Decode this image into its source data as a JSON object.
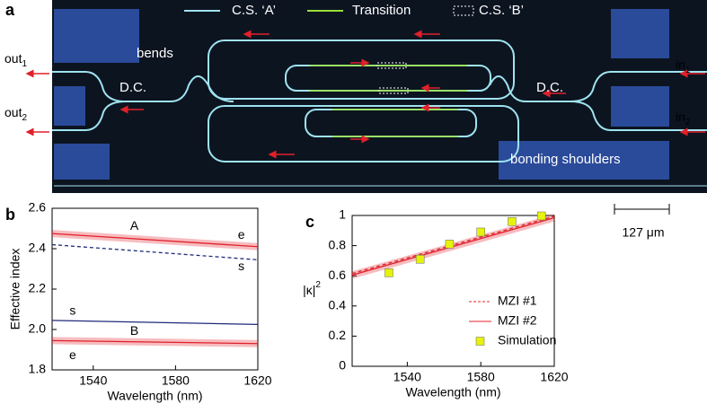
{
  "panel_a": {
    "label": "a",
    "legend": [
      "C.S. ‘A’",
      "Transition",
      "C.S. ‘B’"
    ],
    "outputs": [
      {
        "text": "out",
        "sub": "1"
      },
      {
        "text": "out",
        "sub": "2"
      }
    ],
    "inputs": [
      {
        "text": "in",
        "sub": "1"
      },
      {
        "text": "in",
        "sub": "2"
      }
    ],
    "bends": "bends",
    "couplers": [
      "D.C.",
      "D.C."
    ],
    "shoulders": "bonding shoulders",
    "scale_bar": "127 μm"
  },
  "chart_data": [
    {
      "type": "line",
      "label": "b",
      "xlabel": "Wavelength (nm)",
      "ylabel": "Effective index",
      "xlim": [
        1520,
        1620
      ],
      "xticks": [
        1540,
        1580,
        1620
      ],
      "ylim": [
        1.8,
        2.6
      ],
      "yticks": [
        1.8,
        {
          "value": 2,
          "label": "2.0"
        },
        2.2,
        2.4,
        2.6
      ],
      "x": [
        1520,
        1620
      ],
      "series": [
        {
          "color": "#e0202a",
          "style": "band",
          "values": [
            2.475,
            2.41
          ]
        },
        {
          "color": "#1f2a7a",
          "style": "dashed",
          "values": [
            2.42,
            2.345
          ]
        },
        {
          "color": "#1f2a7a",
          "style": "solid",
          "values": [
            2.045,
            2.025
          ]
        },
        {
          "color": "#e0202a",
          "style": "band",
          "values": [
            1.945,
            1.93
          ]
        }
      ],
      "annotations": [
        "A",
        "e",
        "s",
        "s",
        "B",
        "e"
      ]
    },
    {
      "type": "line",
      "label": "c",
      "xlabel": "Wavelength (nm)",
      "ylabel": "|κ|",
      "ylabel_sup": "2",
      "xlim": [
        1510,
        1620
      ],
      "xticks": [
        1540,
        1580,
        1620
      ],
      "ylim": [
        0,
        1
      ],
      "yticks": [
        0,
        0.2,
        0.4,
        0.6,
        0.8,
        1
      ],
      "legend": "lower right",
      "series": [
        {
          "name": "MZI #1",
          "color": "#e0202a",
          "style": "dashed",
          "x": [
            1510,
            1620
          ],
          "values": [
            0.615,
            0.995
          ]
        },
        {
          "name": "MZI #2",
          "color": "#e0202a",
          "style": "band",
          "x": [
            1510,
            1620
          ],
          "values": [
            0.605,
            0.985
          ]
        },
        {
          "name": "Simulation",
          "color": "#e6f20a",
          "style": "marker",
          "x": [
            1530,
            1547,
            1563,
            1580,
            1597,
            1613
          ],
          "values": [
            0.62,
            0.71,
            0.81,
            0.89,
            0.96,
            0.997
          ]
        }
      ]
    }
  ]
}
